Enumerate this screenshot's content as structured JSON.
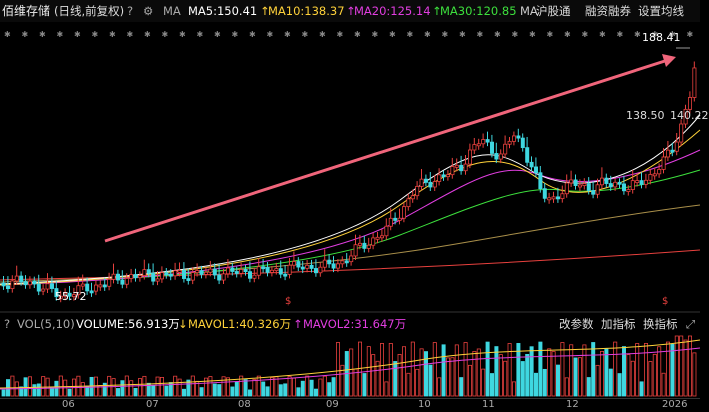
{
  "header": {
    "stock_name": "佰维存储",
    "period": "(日线,前复权)",
    "help": "?",
    "ma_label": "MA",
    "ma5": "MA5:150.41",
    "ma10": "MA10:138.37",
    "ma20": "MA20:125.14",
    "ma30": "MA30:120.85",
    "ma_cut": "MA",
    "hgt": "沪股通",
    "margin": "融资融券",
    "settings": "设置均线",
    "arrow_up": "↑"
  },
  "price_panel": {
    "high_label": "188.41",
    "mid_label": "138.50",
    "mid_label2": "140.22",
    "low_label": "55.72",
    "marker": "$"
  },
  "volume_panel": {
    "help": "?",
    "title": "VOL(5,10)",
    "volume": "VOLUME:56.913万",
    "mavol1": "MAVOL1:40.326万",
    "mavol2": "MAVOL2:31.647万",
    "edit_params": "改参数",
    "add_indicator": "加指标",
    "switch_indicator": "换指标"
  },
  "xaxis": {
    "labels": [
      "06",
      "07",
      "08",
      "09",
      "10",
      "11",
      "12",
      "2026"
    ]
  },
  "colors": {
    "up": "#e8413e",
    "down": "#3fd7e0",
    "ma5": "#ffffff",
    "ma10": "#ffd23a",
    "ma20": "#e13ee0",
    "ma30": "#3de03d",
    "arrow": "#f0657b"
  }
}
